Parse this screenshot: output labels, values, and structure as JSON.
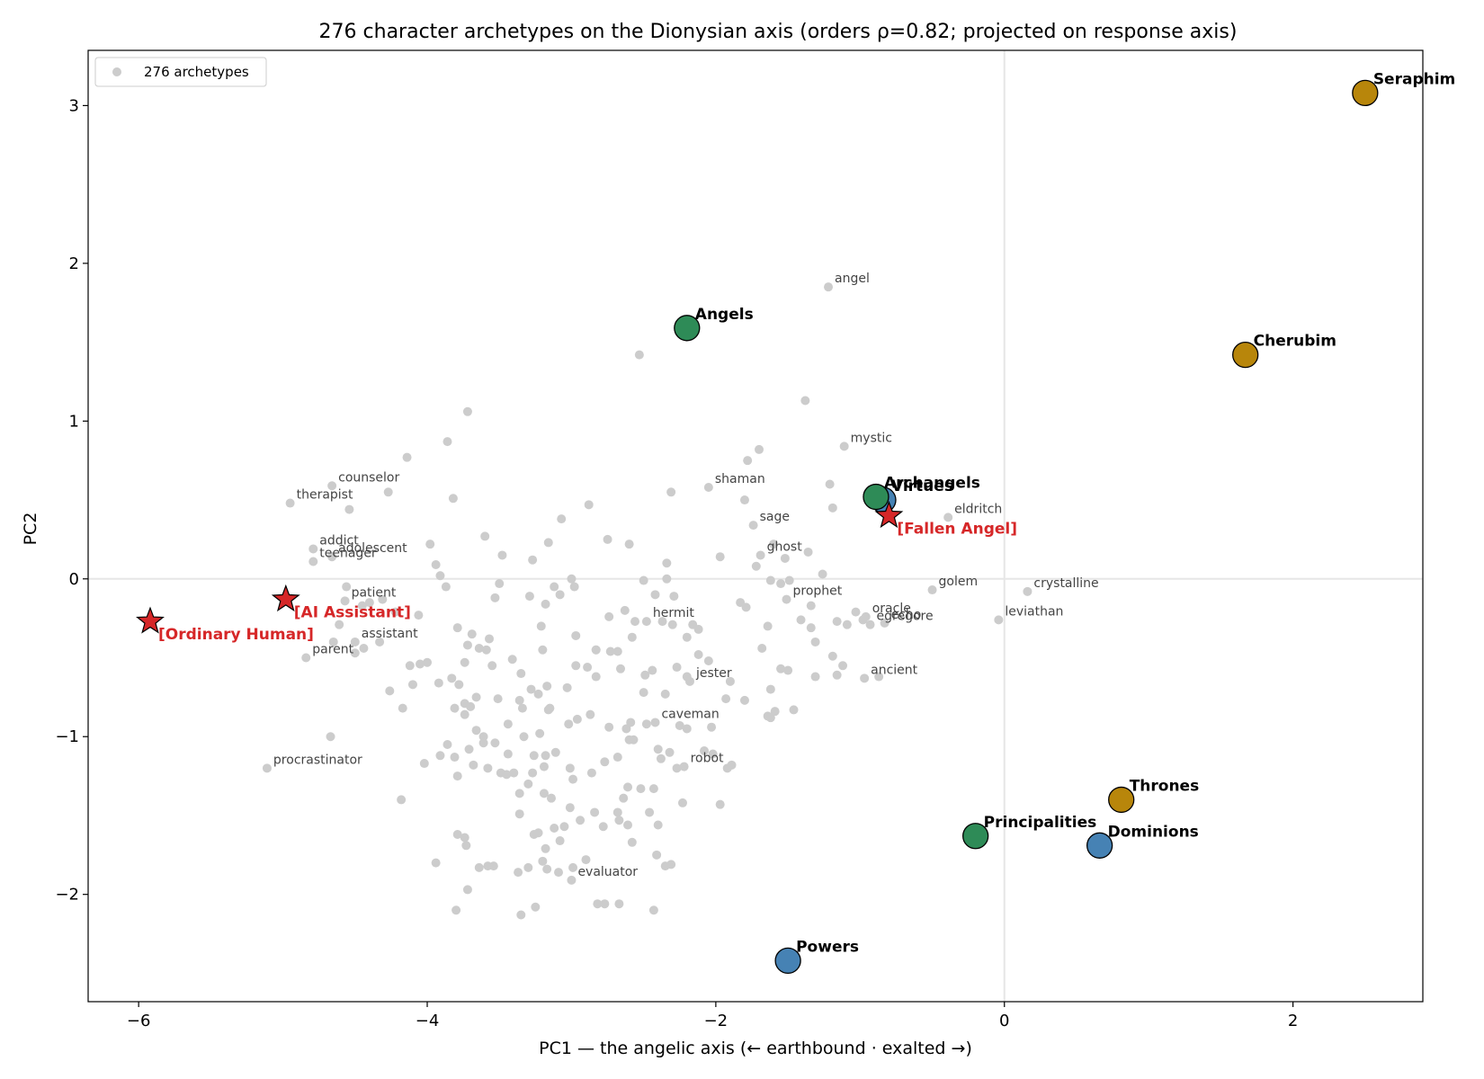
{
  "chart_data": {
    "type": "scatter",
    "title": "276 character archetypes on the Dionysian axis  (orders ρ=0.82; projected on response axis)",
    "xlabel": "PC1  — the angelic axis  (← earthbound · exalted →)",
    "ylabel": "PC2",
    "xlim": [
      -6.35,
      2.9
    ],
    "ylim": [
      -2.68,
      3.35
    ],
    "xticks": [
      -6,
      -4,
      -2,
      0,
      2
    ],
    "yticks": [
      -2,
      -1,
      0,
      1,
      2,
      3
    ],
    "tick_labels_x": [
      "−6",
      "−4",
      "−2",
      "0",
      "2"
    ],
    "tick_labels_y": [
      "−2",
      "−1",
      "0",
      "1",
      "2",
      "3"
    ],
    "reference_lines": {
      "x": 0,
      "y": 0
    },
    "legend": {
      "position": "top-left",
      "label": "276 archetypes"
    },
    "colors": {
      "background_points": "#cccccc",
      "triad_highest": "#b8860b",
      "triad_middle": "#4682b4",
      "triad_lowest": "#2e8b57",
      "reference": "#d62728"
    },
    "labeled_archetypes": [
      {
        "label": "angel",
        "x": -1.22,
        "y": 1.85
      },
      {
        "label": "mystic",
        "x": -1.11,
        "y": 0.84
      },
      {
        "label": "shaman",
        "x": -2.05,
        "y": 0.58
      },
      {
        "label": "counselor",
        "x": -4.66,
        "y": 0.59
      },
      {
        "label": "therapist",
        "x": -4.95,
        "y": 0.48
      },
      {
        "label": "sage",
        "x": -1.74,
        "y": 0.34
      },
      {
        "label": "eldritch",
        "x": -0.39,
        "y": 0.39
      },
      {
        "label": "ghost",
        "x": -1.69,
        "y": 0.15
      },
      {
        "label": "addict",
        "x": -4.79,
        "y": 0.19
      },
      {
        "label": "adolescent",
        "x": -4.66,
        "y": 0.14
      },
      {
        "label": "teenager",
        "x": -4.79,
        "y": 0.11
      },
      {
        "label": "golem",
        "x": -0.5,
        "y": -0.07
      },
      {
        "label": "crystalline",
        "x": 0.16,
        "y": -0.08
      },
      {
        "label": "prophet",
        "x": -1.51,
        "y": -0.13
      },
      {
        "label": "patient",
        "x": -4.57,
        "y": -0.14
      },
      {
        "label": "hermit",
        "x": -2.48,
        "y": -0.27
      },
      {
        "label": "oracle",
        "x": -0.96,
        "y": -0.24
      },
      {
        "label": "egregore",
        "x": -0.93,
        "y": -0.29
      },
      {
        "label": "echo",
        "x": -0.83,
        "y": -0.28
      },
      {
        "label": "leviathan",
        "x": -0.04,
        "y": -0.26
      },
      {
        "label": "assistant",
        "x": -4.5,
        "y": -0.4
      },
      {
        "label": "parent",
        "x": -4.84,
        "y": -0.5
      },
      {
        "label": "ancient",
        "x": -0.97,
        "y": -0.63
      },
      {
        "label": "jester",
        "x": -2.18,
        "y": -0.65
      },
      {
        "label": "caveman",
        "x": -2.42,
        "y": -0.91
      },
      {
        "label": "procrastinator",
        "x": -5.11,
        "y": -1.2
      },
      {
        "label": "robot",
        "x": -2.22,
        "y": -1.19
      },
      {
        "label": "evaluator",
        "x": -3.0,
        "y": -1.91
      }
    ],
    "choirs": [
      {
        "label": "Seraphim",
        "x": 2.5,
        "y": 3.08,
        "triad": "highest"
      },
      {
        "label": "Cherubim",
        "x": 1.67,
        "y": 1.42,
        "triad": "highest"
      },
      {
        "label": "Thrones",
        "x": 0.81,
        "y": -1.4,
        "triad": "highest"
      },
      {
        "label": "Dominions",
        "x": 0.66,
        "y": -1.69,
        "triad": "middle"
      },
      {
        "label": "Virtues",
        "x": -0.84,
        "y": 0.5,
        "triad": "middle"
      },
      {
        "label": "Powers",
        "x": -1.5,
        "y": -2.42,
        "triad": "middle"
      },
      {
        "label": "Principalities",
        "x": -0.2,
        "y": -1.63,
        "triad": "lowest"
      },
      {
        "label": "Archangels",
        "x": -0.89,
        "y": 0.52,
        "triad": "lowest"
      },
      {
        "label": "Angels",
        "x": -2.2,
        "y": 1.59,
        "triad": "lowest"
      }
    ],
    "references": [
      {
        "label": "[Fallen Angel]",
        "x": -0.8,
        "y": 0.4
      },
      {
        "label": "[AI Assistant]",
        "x": -4.98,
        "y": -0.13
      },
      {
        "label": "[Ordinary Human]",
        "x": -5.92,
        "y": -0.27
      }
    ],
    "unlabeled_archetypes": [
      [
        -3.72,
        1.06
      ],
      [
        -3.86,
        0.87
      ],
      [
        -4.14,
        0.77
      ],
      [
        -1.38,
        1.13
      ],
      [
        -2.53,
        1.42
      ],
      [
        -1.7,
        0.82
      ],
      [
        -1.78,
        0.75
      ],
      [
        -1.19,
        0.45
      ],
      [
        -1.21,
        0.6
      ],
      [
        -1.8,
        0.5
      ],
      [
        -2.31,
        0.55
      ],
      [
        -3.07,
        0.38
      ],
      [
        -2.88,
        0.47
      ],
      [
        -3.82,
        0.51
      ],
      [
        -4.27,
        0.55
      ],
      [
        -4.54,
        0.44
      ],
      [
        -3.6,
        0.27
      ],
      [
        -3.98,
        0.22
      ],
      [
        -3.16,
        0.23
      ],
      [
        -2.75,
        0.25
      ],
      [
        -2.6,
        0.22
      ],
      [
        -3.94,
        0.09
      ],
      [
        -3.91,
        0.02
      ],
      [
        -3.27,
        0.12
      ],
      [
        -1.97,
        0.14
      ],
      [
        -2.34,
        0.1
      ],
      [
        -1.6,
        0.22
      ],
      [
        -1.26,
        0.03
      ],
      [
        -3.5,
        -0.03
      ],
      [
        -3.53,
        -0.12
      ],
      [
        -3.87,
        -0.05
      ],
      [
        -3.0,
        0.0
      ],
      [
        -2.98,
        -0.05
      ],
      [
        -2.5,
        -0.01
      ],
      [
        -2.34,
        0.0
      ],
      [
        -1.62,
        -0.01
      ],
      [
        -1.55,
        -0.03
      ],
      [
        -1.49,
        -0.01
      ],
      [
        -3.12,
        -0.05
      ],
      [
        -3.29,
        -0.11
      ],
      [
        -3.18,
        -0.16
      ],
      [
        -4.31,
        -0.13
      ],
      [
        -4.22,
        -0.21
      ],
      [
        -4.06,
        -0.23
      ],
      [
        -4.4,
        -0.15
      ],
      [
        -4.56,
        -0.05
      ],
      [
        -4.45,
        -0.17
      ],
      [
        -4.61,
        -0.29
      ],
      [
        -4.65,
        -0.4
      ],
      [
        -4.44,
        -0.44
      ],
      [
        -4.33,
        -0.4
      ],
      [
        -4.5,
        -0.47
      ],
      [
        -3.79,
        -0.31
      ],
      [
        -3.69,
        -0.35
      ],
      [
        -3.72,
        -0.42
      ],
      [
        -3.64,
        -0.44
      ],
      [
        -3.57,
        -0.38
      ],
      [
        -3.59,
        -0.45
      ],
      [
        -3.41,
        -0.51
      ],
      [
        -3.55,
        -0.55
      ],
      [
        -4.12,
        -0.55
      ],
      [
        -4.05,
        -0.54
      ],
      [
        -4.0,
        -0.53
      ],
      [
        -4.1,
        -0.67
      ],
      [
        -4.26,
        -0.71
      ],
      [
        -3.92,
        -0.66
      ],
      [
        -3.78,
        -0.67
      ],
      [
        -3.66,
        -0.75
      ],
      [
        -3.74,
        -0.79
      ],
      [
        -3.81,
        -0.82
      ],
      [
        -3.7,
        -0.81
      ],
      [
        -3.51,
        -0.76
      ],
      [
        -3.36,
        -0.77
      ],
      [
        -3.23,
        -0.73
      ],
      [
        -3.17,
        -0.68
      ],
      [
        -3.03,
        -0.69
      ],
      [
        -3.15,
        -0.82
      ],
      [
        -3.34,
        -0.82
      ],
      [
        -3.16,
        -0.83
      ],
      [
        -3.28,
        -0.7
      ],
      [
        -2.89,
        -0.56
      ],
      [
        -2.97,
        -0.55
      ],
      [
        -2.83,
        -0.45
      ],
      [
        -2.73,
        -0.46
      ],
      [
        -2.68,
        -0.46
      ],
      [
        -2.58,
        -0.37
      ],
      [
        -2.56,
        -0.27
      ],
      [
        -2.74,
        -0.24
      ],
      [
        -2.63,
        -0.2
      ],
      [
        -2.37,
        -0.27
      ],
      [
        -2.3,
        -0.29
      ],
      [
        -2.16,
        -0.29
      ],
      [
        -2.12,
        -0.32
      ],
      [
        -2.2,
        -0.37
      ],
      [
        -1.83,
        -0.15
      ],
      [
        -1.64,
        -0.3
      ],
      [
        -1.34,
        -0.31
      ],
      [
        -1.16,
        -0.27
      ],
      [
        -1.31,
        -0.4
      ],
      [
        -1.19,
        -0.49
      ],
      [
        -1.55,
        -0.57
      ],
      [
        -1.5,
        -0.58
      ],
      [
        -1.31,
        -0.62
      ],
      [
        -1.16,
        -0.61
      ],
      [
        -1.62,
        -0.7
      ],
      [
        -1.9,
        -0.65
      ],
      [
        -1.93,
        -0.76
      ],
      [
        -1.64,
        -0.87
      ],
      [
        -1.46,
        -0.83
      ],
      [
        -1.62,
        -0.88
      ],
      [
        -2.27,
        -0.56
      ],
      [
        -2.44,
        -0.58
      ],
      [
        -2.49,
        -0.61
      ],
      [
        -2.05,
        -0.52
      ],
      [
        -2.83,
        -0.62
      ],
      [
        -2.87,
        -0.86
      ],
      [
        -2.96,
        -0.89
      ],
      [
        -2.74,
        -0.94
      ],
      [
        -2.62,
        -0.95
      ],
      [
        -2.59,
        -0.91
      ],
      [
        -2.48,
        -0.92
      ],
      [
        -2.25,
        -0.93
      ],
      [
        -2.03,
        -0.94
      ],
      [
        -3.02,
        -0.92
      ],
      [
        -3.22,
        -0.98
      ],
      [
        -3.33,
        -1.0
      ],
      [
        -3.44,
        -0.92
      ],
      [
        -3.61,
        -1.0
      ],
      [
        -3.66,
        -0.96
      ],
      [
        -3.74,
        -0.86
      ],
      [
        -3.53,
        -1.04
      ],
      [
        -3.86,
        -1.05
      ],
      [
        -3.91,
        -1.12
      ],
      [
        -3.81,
        -1.13
      ],
      [
        -3.71,
        -1.08
      ],
      [
        -3.68,
        -1.18
      ],
      [
        -3.58,
        -1.2
      ],
      [
        -3.44,
        -1.11
      ],
      [
        -3.26,
        -1.12
      ],
      [
        -3.18,
        -1.12
      ],
      [
        -3.11,
        -1.1
      ],
      [
        -3.19,
        -1.19
      ],
      [
        -3.27,
        -1.23
      ],
      [
        -3.01,
        -1.2
      ],
      [
        -2.86,
        -1.23
      ],
      [
        -2.77,
        -1.16
      ],
      [
        -2.68,
        -1.13
      ],
      [
        -2.57,
        -1.02
      ],
      [
        -2.6,
        -1.02
      ],
      [
        -2.4,
        -1.08
      ],
      [
        -2.32,
        -1.1
      ],
      [
        -2.38,
        -1.14
      ],
      [
        -2.27,
        -1.2
      ],
      [
        -2.08,
        -1.09
      ],
      [
        -2.02,
        -1.11
      ],
      [
        -1.89,
        -1.18
      ],
      [
        -1.92,
        -1.2
      ],
      [
        -1.97,
        -1.43
      ],
      [
        -2.52,
        -1.33
      ],
      [
        -2.61,
        -1.32
      ],
      [
        -2.64,
        -1.39
      ],
      [
        -2.43,
        -1.33
      ],
      [
        -2.68,
        -1.48
      ],
      [
        -2.67,
        -1.53
      ],
      [
        -2.61,
        -1.56
      ],
      [
        -2.58,
        -1.67
      ],
      [
        -2.41,
        -1.75
      ],
      [
        -2.35,
        -1.82
      ],
      [
        -2.31,
        -1.81
      ],
      [
        -2.4,
        -1.56
      ],
      [
        -2.78,
        -1.57
      ],
      [
        -2.84,
        -1.48
      ],
      [
        -2.94,
        -1.53
      ],
      [
        -3.01,
        -1.45
      ],
      [
        -3.14,
        -1.39
      ],
      [
        -3.19,
        -1.36
      ],
      [
        -3.3,
        -1.3
      ],
      [
        -3.4,
        -1.23
      ],
      [
        -3.45,
        -1.24
      ],
      [
        -3.36,
        -1.36
      ],
      [
        -3.05,
        -1.57
      ],
      [
        -3.08,
        -1.66
      ],
      [
        -3.12,
        -1.58
      ],
      [
        -3.23,
        -1.61
      ],
      [
        -3.26,
        -1.62
      ],
      [
        -3.2,
        -1.79
      ],
      [
        -3.17,
        -1.84
      ],
      [
        -3.09,
        -1.86
      ],
      [
        -3.3,
        -1.83
      ],
      [
        -3.37,
        -1.86
      ],
      [
        -3.54,
        -1.82
      ],
      [
        -3.58,
        -1.82
      ],
      [
        -3.64,
        -1.83
      ],
      [
        -3.73,
        -1.69
      ],
      [
        -3.74,
        -1.64
      ],
      [
        -3.79,
        -1.62
      ],
      [
        -3.72,
        -1.97
      ],
      [
        -3.94,
        -1.8
      ],
      [
        -3.8,
        -2.1
      ],
      [
        -3.35,
        -2.13
      ],
      [
        -3.25,
        -2.08
      ],
      [
        -2.82,
        -2.06
      ],
      [
        -2.77,
        -2.06
      ],
      [
        -2.67,
        -2.06
      ],
      [
        -2.43,
        -2.1
      ],
      [
        -2.9,
        -1.78
      ],
      [
        -2.99,
        -1.83
      ],
      [
        -3.79,
        -1.25
      ],
      [
        -4.18,
        -1.4
      ],
      [
        -4.67,
        -1.0
      ],
      [
        -4.17,
        -0.82
      ],
      [
        -3.83,
        -0.63
      ],
      [
        -3.21,
        -0.3
      ],
      [
        -2.97,
        -0.36
      ],
      [
        -2.83,
        -0.45
      ],
      [
        -2.66,
        -0.57
      ],
      [
        -2.5,
        -0.72
      ],
      [
        -2.35,
        -0.73
      ],
      [
        -1.8,
        -0.77
      ],
      [
        -1.59,
        -0.84
      ],
      [
        -1.79,
        -0.18
      ],
      [
        -1.34,
        -0.17
      ],
      [
        -1.09,
        -0.29
      ],
      [
        -1.03,
        -0.21
      ],
      [
        -0.98,
        -0.26
      ],
      [
        -1.52,
        0.13
      ],
      [
        -1.36,
        0.17
      ],
      [
        -1.72,
        0.08
      ],
      [
        -3.48,
        0.15
      ],
      [
        -2.42,
        -0.1
      ],
      [
        -2.29,
        -0.11
      ],
      [
        -3.74,
        -0.53
      ],
      [
        -3.2,
        -0.45
      ],
      [
        -2.12,
        -0.48
      ],
      [
        -2.2,
        -0.62
      ],
      [
        -3.61,
        -1.04
      ],
      [
        -3.49,
        -1.23
      ],
      [
        -3.36,
        -1.49
      ],
      [
        -3.18,
        -1.71
      ],
      [
        -2.99,
        -1.27
      ],
      [
        -2.46,
        -1.48
      ],
      [
        -2.23,
        -1.42
      ],
      [
        -3.35,
        -0.6
      ],
      [
        -4.02,
        -1.17
      ],
      [
        -3.08,
        -0.1
      ],
      [
        -2.2,
        -0.95
      ],
      [
        -1.68,
        -0.44
      ],
      [
        -1.41,
        -0.26
      ],
      [
        -1.12,
        -0.55
      ],
      [
        -0.87,
        -0.62
      ]
    ]
  }
}
